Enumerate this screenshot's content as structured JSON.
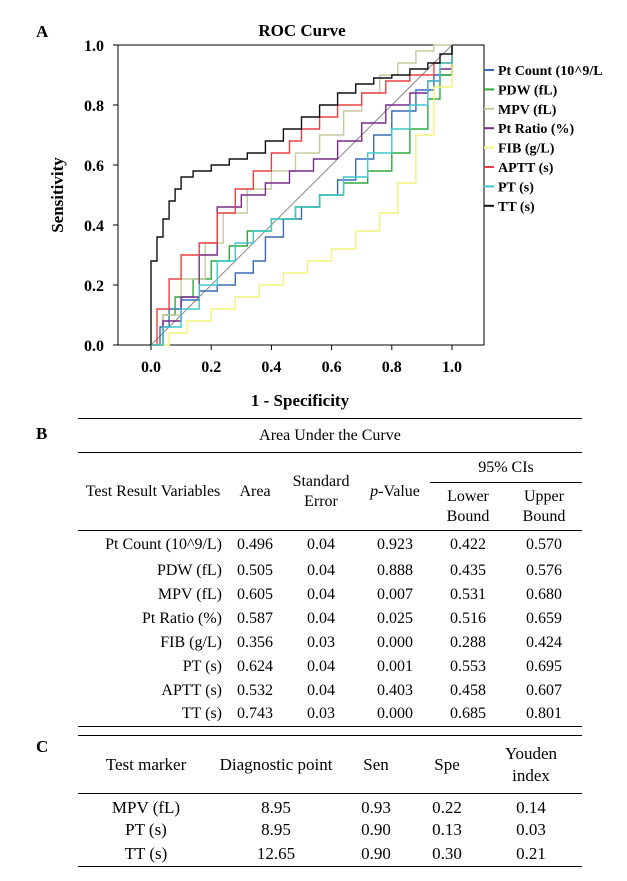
{
  "panels": {
    "a": "A",
    "b": "B",
    "c": "C"
  },
  "chart_data": {
    "type": "line",
    "title": "ROC Curve",
    "xlabel": "1 - Specificity",
    "ylabel": "Sensitivity",
    "xlim": [
      0,
      1
    ],
    "ylim": [
      0,
      1
    ],
    "xticks": [
      "0.0",
      "0.2",
      "0.4",
      "0.6",
      "0.8",
      "1.0"
    ],
    "yticks": [
      "0.0",
      "0.2",
      "0.4",
      "0.6",
      "0.8",
      "1.0"
    ],
    "grid": false,
    "legend_position": "right",
    "series": [
      {
        "name": "Pt Count (10^9/L",
        "color": "#3a6ab5",
        "points": [
          [
            0,
            0
          ],
          [
            0.03,
            0.06
          ],
          [
            0.06,
            0.12
          ],
          [
            0.1,
            0.15
          ],
          [
            0.16,
            0.18
          ],
          [
            0.22,
            0.2
          ],
          [
            0.28,
            0.24
          ],
          [
            0.34,
            0.28
          ],
          [
            0.38,
            0.36
          ],
          [
            0.44,
            0.42
          ],
          [
            0.5,
            0.46
          ],
          [
            0.56,
            0.5
          ],
          [
            0.62,
            0.55
          ],
          [
            0.68,
            0.62
          ],
          [
            0.74,
            0.7
          ],
          [
            0.8,
            0.78
          ],
          [
            0.88,
            0.85
          ],
          [
            0.94,
            0.9
          ],
          [
            1,
            1
          ]
        ]
      },
      {
        "name": "PDW (fL)",
        "color": "#2eaa3d",
        "points": [
          [
            0,
            0
          ],
          [
            0.04,
            0.1
          ],
          [
            0.08,
            0.16
          ],
          [
            0.14,
            0.22
          ],
          [
            0.2,
            0.28
          ],
          [
            0.26,
            0.33
          ],
          [
            0.32,
            0.38
          ],
          [
            0.4,
            0.42
          ],
          [
            0.48,
            0.46
          ],
          [
            0.56,
            0.5
          ],
          [
            0.64,
            0.54
          ],
          [
            0.72,
            0.58
          ],
          [
            0.8,
            0.64
          ],
          [
            0.86,
            0.72
          ],
          [
            0.92,
            0.82
          ],
          [
            0.96,
            0.9
          ],
          [
            1,
            1
          ]
        ]
      },
      {
        "name": "MPV (fL)",
        "color": "#c9c9a0",
        "points": [
          [
            0,
            0
          ],
          [
            0.04,
            0.1
          ],
          [
            0.1,
            0.22
          ],
          [
            0.18,
            0.34
          ],
          [
            0.24,
            0.44
          ],
          [
            0.32,
            0.52
          ],
          [
            0.4,
            0.58
          ],
          [
            0.48,
            0.64
          ],
          [
            0.56,
            0.7
          ],
          [
            0.64,
            0.78
          ],
          [
            0.7,
            0.84
          ],
          [
            0.76,
            0.9
          ],
          [
            0.82,
            0.94
          ],
          [
            0.88,
            0.98
          ],
          [
            0.94,
            1
          ],
          [
            1,
            1
          ]
        ]
      },
      {
        "name": "Pt Ratio (%)",
        "color": "#7a2a8a",
        "points": [
          [
            0,
            0
          ],
          [
            0.04,
            0.08
          ],
          [
            0.1,
            0.16
          ],
          [
            0.16,
            0.3
          ],
          [
            0.22,
            0.46
          ],
          [
            0.3,
            0.5
          ],
          [
            0.38,
            0.54
          ],
          [
            0.46,
            0.58
          ],
          [
            0.54,
            0.62
          ],
          [
            0.62,
            0.68
          ],
          [
            0.7,
            0.74
          ],
          [
            0.78,
            0.8
          ],
          [
            0.86,
            0.84
          ],
          [
            0.92,
            0.88
          ],
          [
            0.96,
            0.92
          ],
          [
            1,
            1
          ]
        ]
      },
      {
        "name": "FIB (g/L)",
        "color": "#f2f27a",
        "points": [
          [
            0,
            0
          ],
          [
            0.06,
            0.04
          ],
          [
            0.12,
            0.08
          ],
          [
            0.2,
            0.12
          ],
          [
            0.28,
            0.16
          ],
          [
            0.36,
            0.2
          ],
          [
            0.44,
            0.24
          ],
          [
            0.52,
            0.28
          ],
          [
            0.6,
            0.32
          ],
          [
            0.68,
            0.38
          ],
          [
            0.76,
            0.44
          ],
          [
            0.82,
            0.54
          ],
          [
            0.88,
            0.7
          ],
          [
            0.94,
            0.86
          ],
          [
            1,
            1
          ]
        ]
      },
      {
        "name": "APTT (s)",
        "color": "#e84040",
        "points": [
          [
            0,
            0
          ],
          [
            0.02,
            0.12
          ],
          [
            0.06,
            0.22
          ],
          [
            0.1,
            0.3
          ],
          [
            0.16,
            0.34
          ],
          [
            0.22,
            0.44
          ],
          [
            0.28,
            0.52
          ],
          [
            0.34,
            0.58
          ],
          [
            0.4,
            0.64
          ],
          [
            0.46,
            0.68
          ],
          [
            0.5,
            0.72
          ],
          [
            0.56,
            0.76
          ],
          [
            0.62,
            0.8
          ],
          [
            0.7,
            0.84
          ],
          [
            0.78,
            0.88
          ],
          [
            0.86,
            0.9
          ],
          [
            0.94,
            0.94
          ],
          [
            1,
            1
          ]
        ]
      },
      {
        "name": "PT (s)",
        "color": "#3fc8cc",
        "points": [
          [
            0,
            0
          ],
          [
            0.04,
            0.06
          ],
          [
            0.1,
            0.12
          ],
          [
            0.16,
            0.2
          ],
          [
            0.22,
            0.28
          ],
          [
            0.28,
            0.34
          ],
          [
            0.34,
            0.38
          ],
          [
            0.4,
            0.42
          ],
          [
            0.48,
            0.46
          ],
          [
            0.56,
            0.5
          ],
          [
            0.64,
            0.56
          ],
          [
            0.72,
            0.64
          ],
          [
            0.8,
            0.72
          ],
          [
            0.86,
            0.8
          ],
          [
            0.92,
            0.88
          ],
          [
            0.96,
            0.94
          ],
          [
            1,
            1
          ]
        ]
      },
      {
        "name": "TT (s)",
        "color": "#111111",
        "points": [
          [
            0,
            0
          ],
          [
            0,
            0.28
          ],
          [
            0.02,
            0.36
          ],
          [
            0.04,
            0.42
          ],
          [
            0.06,
            0.48
          ],
          [
            0.08,
            0.52
          ],
          [
            0.1,
            0.56
          ],
          [
            0.14,
            0.58
          ],
          [
            0.2,
            0.6
          ],
          [
            0.26,
            0.62
          ],
          [
            0.32,
            0.64
          ],
          [
            0.38,
            0.68
          ],
          [
            0.44,
            0.72
          ],
          [
            0.5,
            0.76
          ],
          [
            0.56,
            0.8
          ],
          [
            0.62,
            0.84
          ],
          [
            0.68,
            0.87
          ],
          [
            0.74,
            0.89
          ],
          [
            0.8,
            0.9
          ],
          [
            0.86,
            0.92
          ],
          [
            0.92,
            0.94
          ],
          [
            0.96,
            0.97
          ],
          [
            1,
            1
          ]
        ]
      }
    ]
  },
  "auc_table": {
    "title": "Area Under the Curve",
    "headers": {
      "variables": "Test Result Variables",
      "area": "Area",
      "se": "Standard Error",
      "p_prefix": "p",
      "p_suffix": "-Value",
      "ci": "95% CIs",
      "lower": "Lower Bound",
      "upper": "Upper Bound"
    },
    "rows": [
      [
        "Pt Count (10^9/L)",
        "0.496",
        "0.04",
        "0.923",
        "0.422",
        "0.570"
      ],
      [
        "PDW (fL)",
        "0.505",
        "0.04",
        "0.888",
        "0.435",
        "0.576"
      ],
      [
        "MPV (fL)",
        "0.605",
        "0.04",
        "0.007",
        "0.531",
        "0.680"
      ],
      [
        "Pt Ratio (%)",
        "0.587",
        "0.04",
        "0.025",
        "0.516",
        "0.659"
      ],
      [
        "FIB (g/L)",
        "0.356",
        "0.03",
        "0.000",
        "0.288",
        "0.424"
      ],
      [
        "PT (s)",
        "0.624",
        "0.04",
        "0.001",
        "0.553",
        "0.695"
      ],
      [
        "APTT (s)",
        "0.532",
        "0.04",
        "0.403",
        "0.458",
        "0.607"
      ],
      [
        "TT (s)",
        "0.743",
        "0.03",
        "0.000",
        "0.685",
        "0.801"
      ]
    ]
  },
  "diag_table": {
    "headers": [
      "Test marker",
      "Diagnostic point",
      "Sen",
      "Spe",
      "Youden index"
    ],
    "rows": [
      [
        "MPV (fL)",
        "8.95",
        "0.93",
        "0.22",
        "0.14"
      ],
      [
        "PT (s)",
        "8.95",
        "0.90",
        "0.13",
        "0.03"
      ],
      [
        "TT (s)",
        "12.65",
        "0.90",
        "0.30",
        "0.21"
      ]
    ]
  }
}
